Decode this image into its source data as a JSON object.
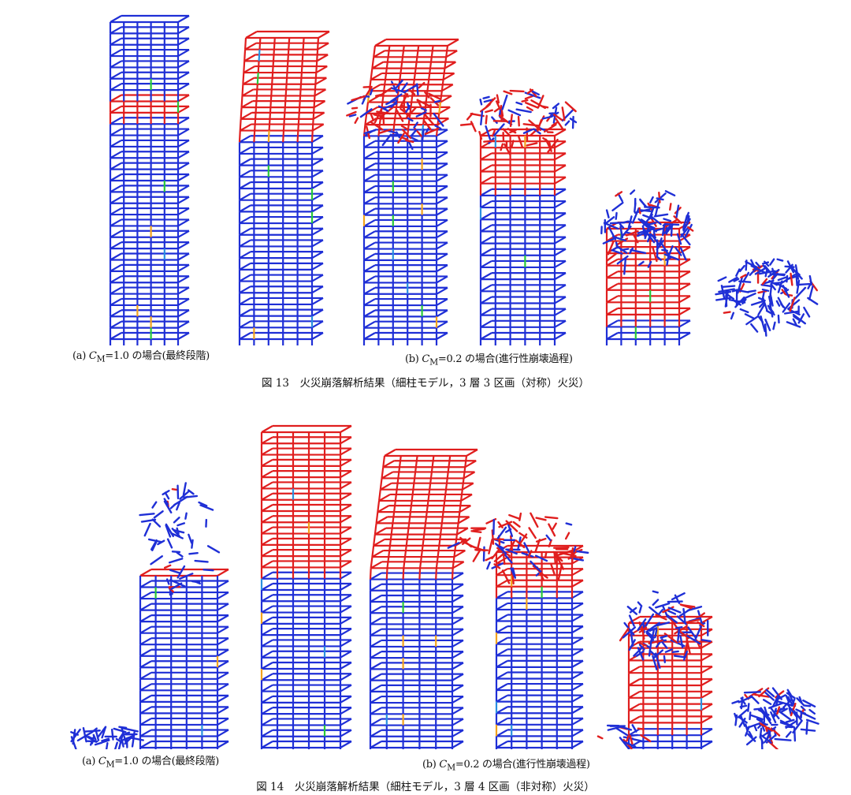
{
  "figures": [
    {
      "label_a": {
        "prefix": "(a) ",
        "var": "C",
        "sub": "M",
        "rest": "=1.0 の場合(最終段階)"
      },
      "label_b": {
        "prefix": "(b) ",
        "var": "C",
        "sub": "M",
        "rest": "=0.2 の場合(進行性崩壊過程)"
      },
      "caption": "図 13　火災崩落解析結果（細柱モデル，3 層 3 区画（対称）火災）"
    },
    {
      "label_a": {
        "prefix": "(a) ",
        "var": "C",
        "sub": "M",
        "rest": "=1.0 の場合(最終段階)"
      },
      "label_b": {
        "prefix": "(b) ",
        "var": "C",
        "sub": "M",
        "rest": "=0.2 の場合(進行性崩壊過程)"
      },
      "caption": "図 14　火災崩落解析結果（細柱モデル，3 層 4 区画（非対称）火災）"
    }
  ],
  "colors": {
    "frame": "#1f2fd6",
    "damaged": "#e01e1e",
    "hot": "#f3a21c",
    "warm": "#27c83a",
    "cool": "#2a8fe0"
  }
}
